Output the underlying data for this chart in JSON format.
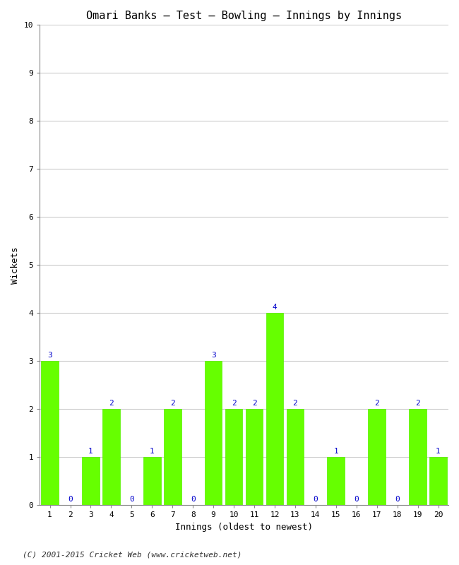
{
  "title": "Omari Banks – Test – Bowling – Innings by Innings",
  "xlabel": "Innings (oldest to newest)",
  "ylabel": "Wickets",
  "innings": [
    1,
    2,
    3,
    4,
    5,
    6,
    7,
    8,
    9,
    10,
    11,
    12,
    13,
    14,
    15,
    16,
    17,
    18,
    19,
    20
  ],
  "wickets": [
    3,
    0,
    1,
    2,
    0,
    1,
    2,
    0,
    3,
    2,
    2,
    4,
    2,
    0,
    1,
    0,
    2,
    0,
    2,
    1
  ],
  "bar_color": "#66ff00",
  "bar_edge_color": "#55ee00",
  "label_color": "#0000cc",
  "background_color": "#ffffff",
  "ylim": [
    0,
    10
  ],
  "yticks": [
    0,
    1,
    2,
    3,
    4,
    5,
    6,
    7,
    8,
    9,
    10
  ],
  "grid_color": "#cccccc",
  "title_fontsize": 11,
  "axis_label_fontsize": 9,
  "tick_fontsize": 8,
  "bar_label_fontsize": 8,
  "footer": "(C) 2001-2015 Cricket Web (www.cricketweb.net)",
  "footer_fontsize": 8
}
